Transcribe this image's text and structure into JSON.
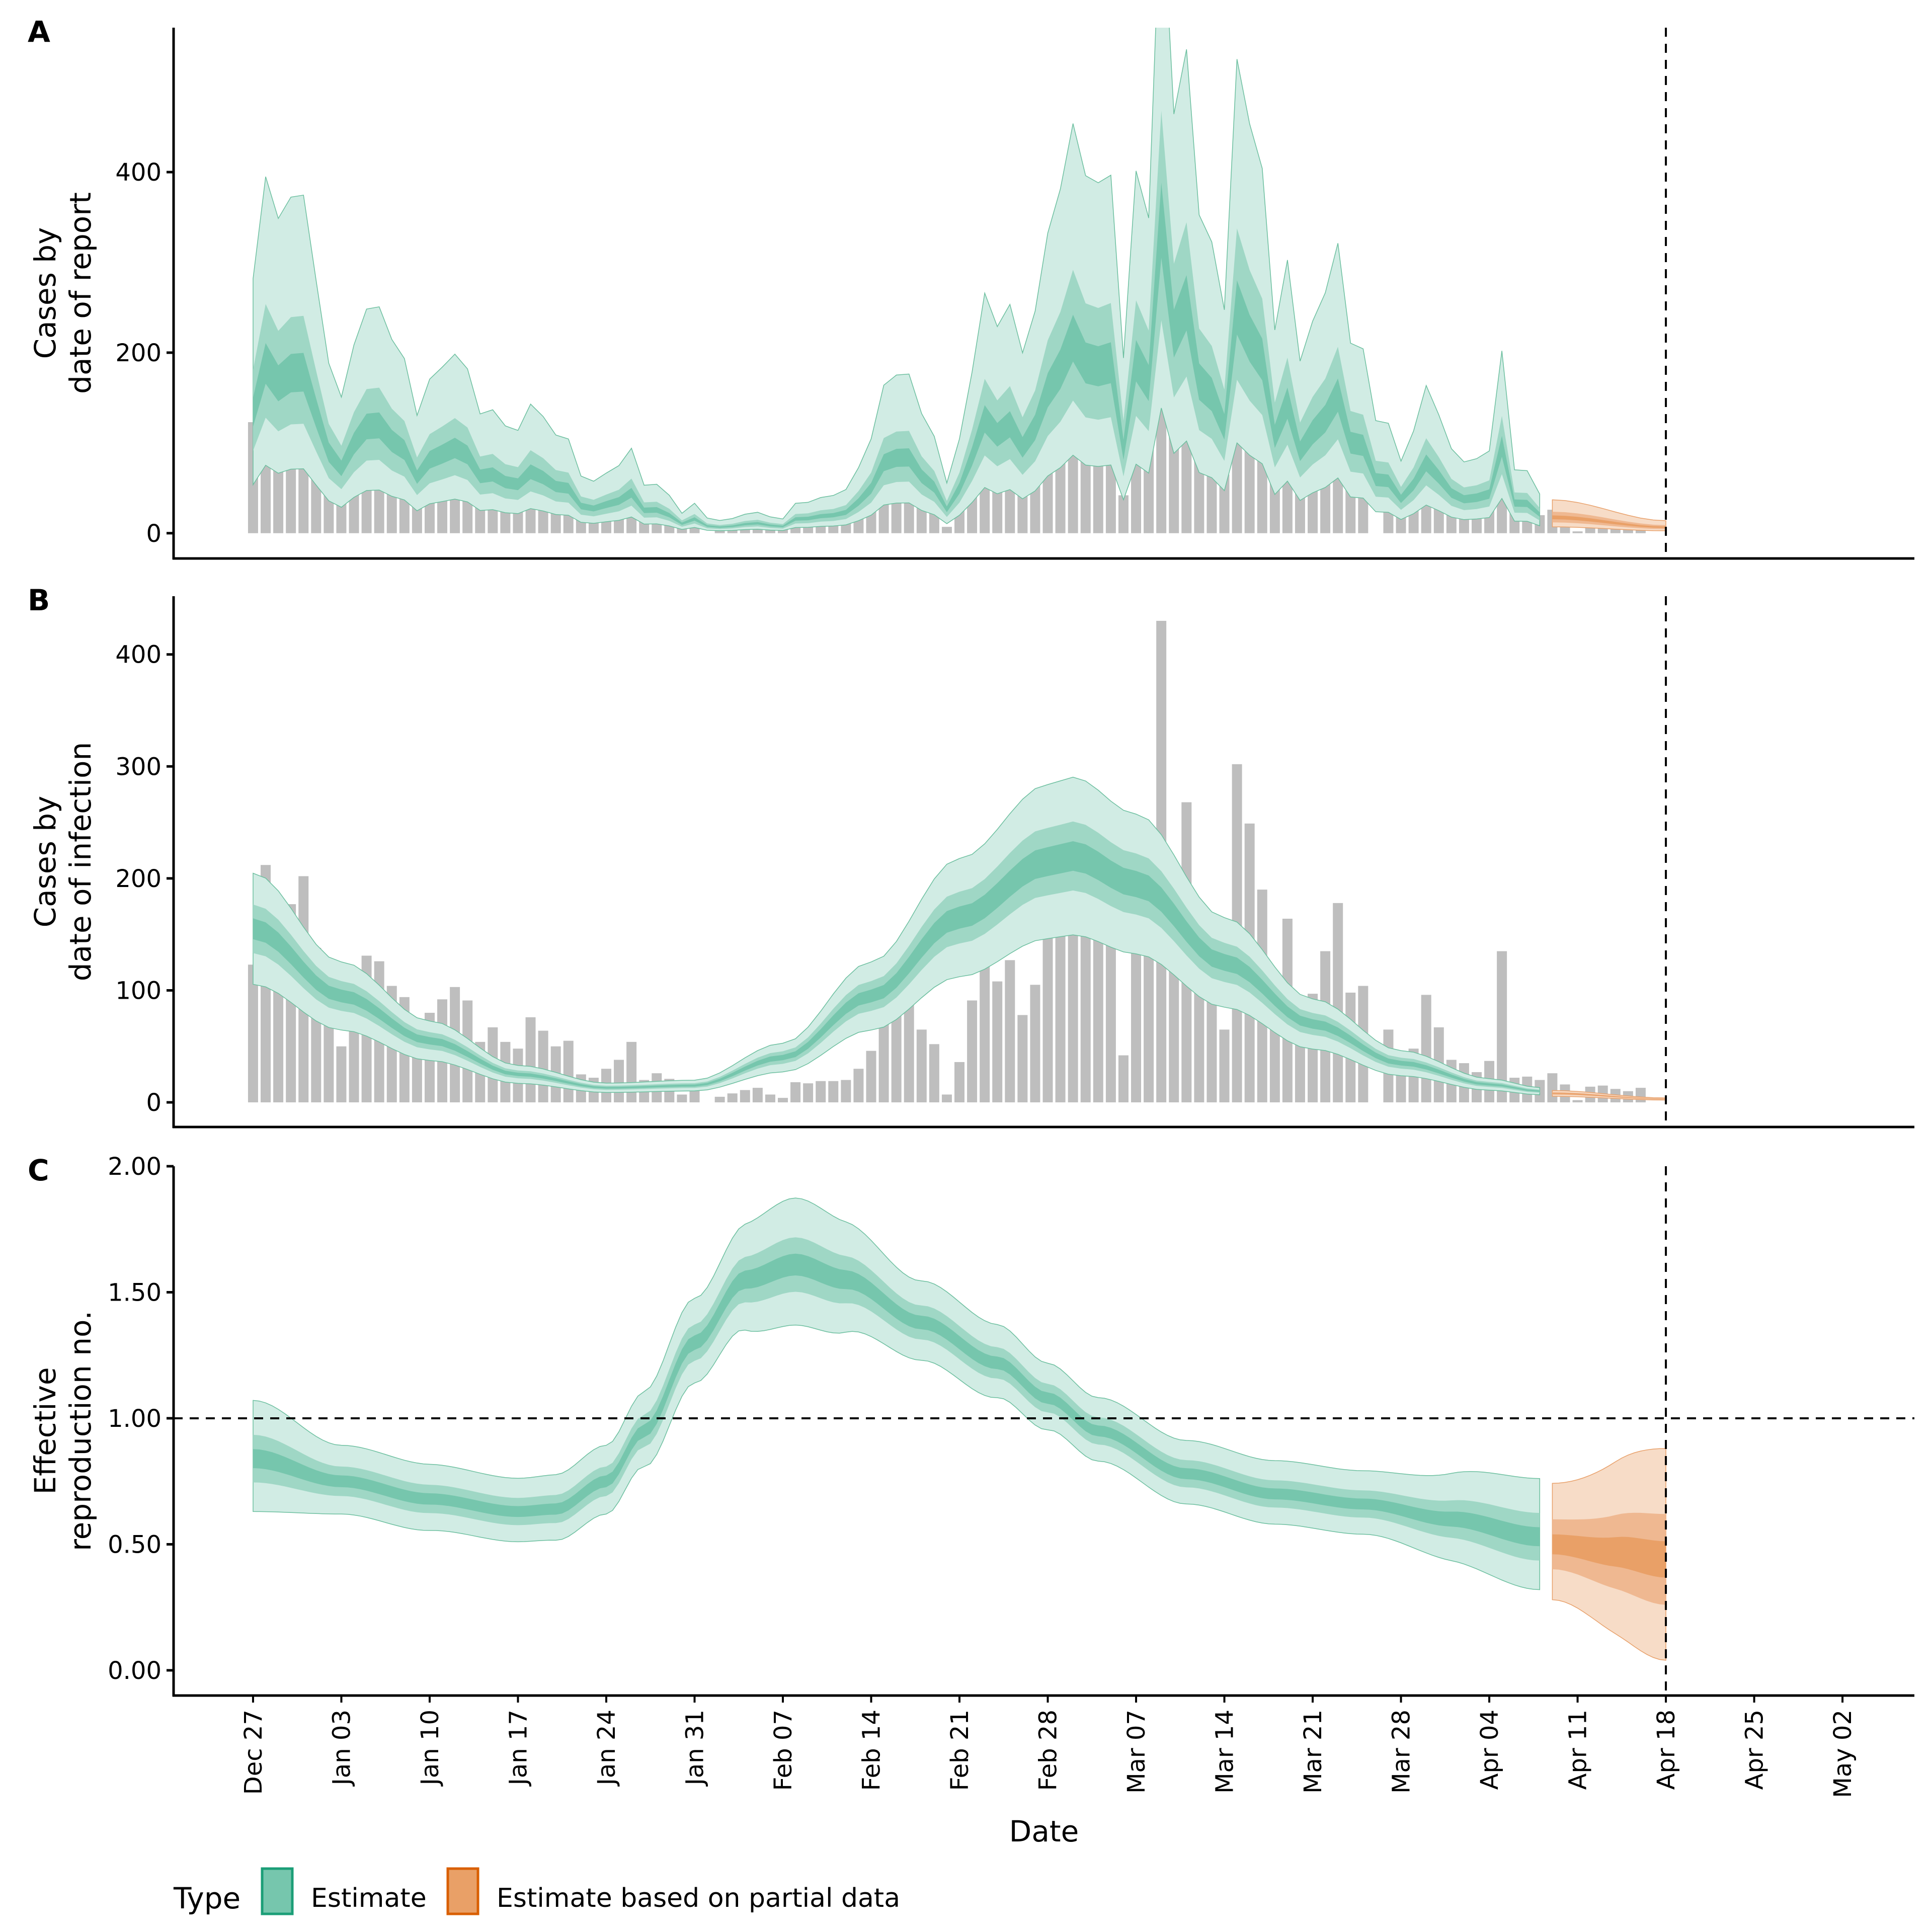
{
  "chart_data": [
    {
      "panel": "A",
      "type": "bar+area",
      "ylabel": [
        "Cases by",
        "date of report"
      ],
      "yticks": [
        0,
        200,
        400
      ],
      "ylim": [
        -28,
        560
      ],
      "band_levels": [
        "90%",
        "50%",
        "20%"
      ]
    },
    {
      "panel": "B",
      "type": "bar+area",
      "ylabel": [
        "Cases by",
        "date of infection"
      ],
      "yticks": [
        0,
        100,
        200,
        300,
        400
      ],
      "ylim": [
        -22,
        452
      ]
    },
    {
      "panel": "C",
      "type": "area",
      "ylabel": [
        "Effective",
        "reproduction no."
      ],
      "yticks": [
        "0.00",
        "0.50",
        "1.00",
        "1.50",
        "2.00"
      ],
      "ylim": [
        -0.1,
        2.0
      ],
      "reference_line": 1.0
    }
  ],
  "shared": {
    "xlabel": "Date",
    "start_date": "Dec 27",
    "xticks": [
      "Dec 27",
      "Jan 03",
      "Jan 10",
      "Jan 17",
      "Jan 24",
      "Jan 31",
      "Feb 07",
      "Feb 14",
      "Feb 21",
      "Feb 28",
      "Mar 07",
      "Mar 14",
      "Mar 21",
      "Mar 28",
      "Apr 04",
      "Apr 11",
      "Apr 18",
      "Apr 25",
      "May 02"
    ],
    "xlim_days": [
      -6.3,
      131.7
    ],
    "forecast_line_day": 112,
    "estimate_end_day": 102,
    "partial_start_day": 103,
    "observed_cases": [
      123,
      212,
      159,
      177,
      202,
      138,
      71,
      50,
      102,
      131,
      126,
      104,
      94,
      45,
      80,
      92,
      103,
      91,
      54,
      67,
      54,
      48,
      76,
      64,
      50,
      55,
      25,
      22,
      30,
      38,
      54,
      20,
      26,
      21,
      7,
      20,
      0,
      5,
      8,
      11,
      13,
      7,
      4,
      18,
      17,
      19,
      19,
      20,
      30,
      46,
      86,
      90,
      90,
      65,
      52,
      7,
      36,
      91,
      147,
      108,
      127,
      78,
      105,
      162,
      188,
      236,
      178,
      195,
      211,
      42,
      183,
      139,
      430,
      204,
      268,
      169,
      127,
      65,
      302,
      249,
      190,
      72,
      164,
      76,
      97,
      135,
      178,
      98,
      104,
      0,
      65,
      30,
      48,
      96,
      67,
      38,
      35,
      27,
      37,
      135,
      22,
      23,
      20,
      26,
      16,
      2,
      14,
      15,
      12,
      10,
      13
    ],
    "infection_median_knots": [
      [
        0,
        155
      ],
      [
        7,
        95
      ],
      [
        14,
        55
      ],
      [
        21,
        25
      ],
      [
        28,
        13
      ],
      [
        35,
        15
      ],
      [
        42,
        40
      ],
      [
        49,
        95
      ],
      [
        56,
        165
      ],
      [
        63,
        215
      ],
      [
        65,
        220
      ],
      [
        70,
        195
      ],
      [
        77,
        125
      ],
      [
        84,
        70
      ],
      [
        91,
        35
      ],
      [
        98,
        16
      ],
      [
        102,
        10
      ],
      [
        103,
        8
      ],
      [
        112,
        3
      ]
    ],
    "rt_median_knots": [
      [
        0,
        0.84
      ],
      [
        7,
        0.75
      ],
      [
        14,
        0.68
      ],
      [
        21,
        0.63
      ],
      [
        24,
        0.64
      ],
      [
        28,
        0.75
      ],
      [
        31,
        0.95
      ],
      [
        35,
        1.3
      ],
      [
        39,
        1.55
      ],
      [
        43,
        1.61
      ],
      [
        47,
        1.55
      ],
      [
        53,
        1.38
      ],
      [
        59,
        1.22
      ],
      [
        63,
        1.08
      ],
      [
        67,
        0.95
      ],
      [
        74,
        0.78
      ],
      [
        81,
        0.7
      ],
      [
        88,
        0.66
      ],
      [
        95,
        0.6
      ],
      [
        102,
        0.53
      ],
      [
        103,
        0.5
      ],
      [
        108,
        0.47
      ],
      [
        112,
        0.44
      ]
    ],
    "rt_width_knots": [
      [
        0,
        0.21
      ],
      [
        7,
        0.13
      ],
      [
        21,
        0.12
      ],
      [
        28,
        0.13
      ],
      [
        35,
        0.16
      ],
      [
        43,
        0.24
      ],
      [
        53,
        0.15
      ],
      [
        67,
        0.12
      ],
      [
        88,
        0.12
      ],
      [
        102,
        0.21
      ],
      [
        103,
        0.22
      ],
      [
        112,
        0.4
      ]
    ]
  },
  "legend": {
    "title": "Type",
    "items": [
      {
        "label": "Estimate",
        "fill": "#76c6ad",
        "stroke": "#1b9e77"
      },
      {
        "label": "Estimate based on partial data",
        "fill": "#e9a067",
        "stroke": "#d95f02"
      }
    ]
  },
  "colors": {
    "bar": "#bebebe",
    "estimate": "#1b9e77",
    "partial": "#d95f02"
  }
}
